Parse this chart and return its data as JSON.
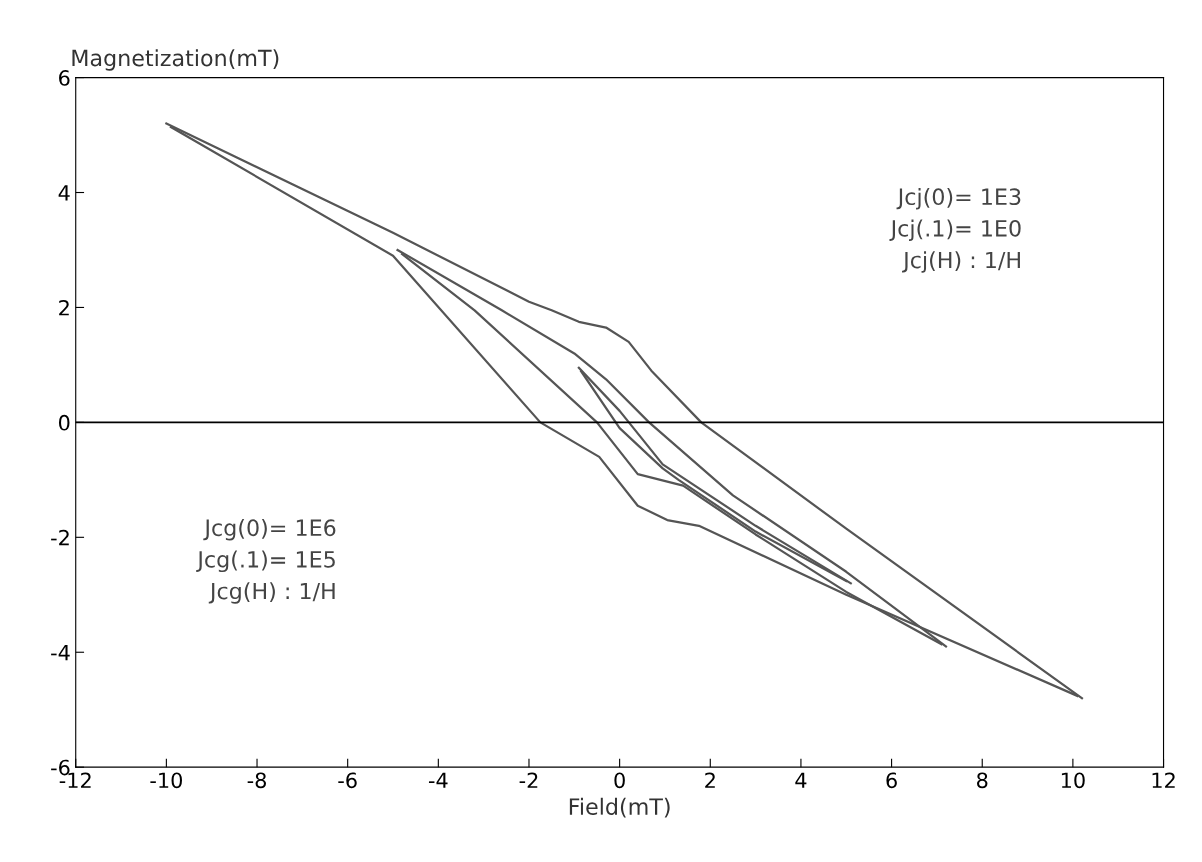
{
  "chart_data": {
    "type": "line",
    "xlabel": "Field(mT)",
    "ylabel": "Magnetization(mT)",
    "xlim": [
      -12,
      12
    ],
    "ylim": [
      -6,
      6
    ],
    "xticks": [
      -12,
      -10,
      -8,
      -6,
      -4,
      -2,
      0,
      2,
      4,
      6,
      8,
      10,
      12
    ],
    "yticks": [
      -6,
      -4,
      -2,
      0,
      2,
      4,
      6
    ],
    "grid": false,
    "marker": "none",
    "line_style": "solid",
    "ref_lines": [
      {
        "axis": "y",
        "value": 0,
        "color": "#000000"
      }
    ],
    "annotations": [
      "Jcj(0)= 1E3\nJcj(.1)= 1E0\nJcj(H) : 1/H",
      "Jcg(0)= 1E6\nJcg(.1)= 1E5\nJcg(H) : 1/H"
    ],
    "series": [
      {
        "color": "#555555",
        "x": [
          -10,
          -5,
          -2,
          -1.5,
          -0.9,
          -0.3,
          0.2,
          0.7,
          1.8,
          5,
          10.2
        ],
        "values": [
          5.2,
          3.3,
          2.1,
          1.95,
          1.75,
          1.65,
          1.4,
          0.9,
          0,
          -1.85,
          -4.8
        ]
      },
      {
        "color": "#555555",
        "x": [
          -9.9,
          -5,
          -1.75,
          -0.45,
          0.4,
          1.05,
          1.75,
          5,
          10.1
        ],
        "values": [
          5.14,
          2.9,
          0,
          -0.6,
          -1.45,
          -1.7,
          -1.8,
          -3.0,
          -4.76
        ]
      },
      {
        "color": "#555555",
        "x": [
          -4.9,
          -2.6,
          -1,
          -0.3,
          0.65,
          2.5,
          5,
          7.2
        ],
        "values": [
          3.0,
          1.95,
          1.2,
          0.75,
          0,
          -1.27,
          -2.6,
          -3.9
        ]
      },
      {
        "color": "#555555",
        "x": [
          -4.8,
          -3.2,
          -0.5,
          0.4,
          1.4,
          3,
          5,
          7.1
        ],
        "values": [
          2.93,
          1.95,
          0,
          -0.9,
          -1.1,
          -1.95,
          -2.95,
          -3.86
        ]
      },
      {
        "color": "#555555",
        "x": [
          -0.9,
          0,
          0.95,
          3,
          5.1
        ],
        "values": [
          0.95,
          0.2,
          -0.73,
          -1.8,
          -2.8
        ]
      },
      {
        "color": "#555555",
        "x": [
          -0.85,
          0,
          0.95,
          1.3,
          3,
          5.0
        ],
        "values": [
          0.89,
          -0.1,
          -0.8,
          -1.0,
          -1.9,
          -2.76
        ]
      }
    ]
  }
}
